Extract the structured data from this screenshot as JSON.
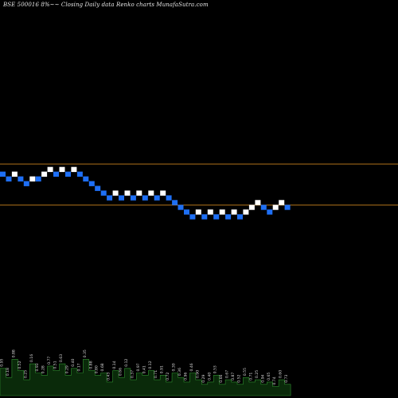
{
  "title": "BSE 500016  8%~~ Closing Daily data  Renko  charts MunafaSutra.com",
  "colors": {
    "background": "#000000",
    "up_brick": "#ffffff",
    "down_brick": "#1e6ff5",
    "guide_line": "#c8821e",
    "volume_fill": "#0a2a0a",
    "volume_stroke": "#2f8f2f",
    "volume_label": "#d8d8d8"
  },
  "chart_data": {
    "type": "renko",
    "title": "BSE 500016  8%~~ Closing Daily data  Renko  charts MunafaSutra.com",
    "bricks": [
      {
        "d": "down",
        "level": 6
      },
      {
        "d": "down",
        "level": 5
      },
      {
        "d": "up",
        "level": 6
      },
      {
        "d": "down",
        "level": 5
      },
      {
        "d": "down",
        "level": 4
      },
      {
        "d": "up",
        "level": 5
      },
      {
        "d": "down",
        "level": 5
      },
      {
        "d": "up",
        "level": 6
      },
      {
        "d": "up",
        "level": 7
      },
      {
        "d": "down",
        "level": 6
      },
      {
        "d": "up",
        "level": 7
      },
      {
        "d": "down",
        "level": 6
      },
      {
        "d": "up",
        "level": 7
      },
      {
        "d": "down",
        "level": 6
      },
      {
        "d": "down",
        "level": 5
      },
      {
        "d": "down",
        "level": 4
      },
      {
        "d": "down",
        "level": 3
      },
      {
        "d": "down",
        "level": 2
      },
      {
        "d": "down",
        "level": 1
      },
      {
        "d": "up",
        "level": 2
      },
      {
        "d": "down",
        "level": 1
      },
      {
        "d": "up",
        "level": 2
      },
      {
        "d": "down",
        "level": 1
      },
      {
        "d": "up",
        "level": 2
      },
      {
        "d": "down",
        "level": 1
      },
      {
        "d": "up",
        "level": 2
      },
      {
        "d": "down",
        "level": 1
      },
      {
        "d": "up",
        "level": 2
      },
      {
        "d": "down",
        "level": 1
      },
      {
        "d": "down",
        "level": 0
      },
      {
        "d": "down",
        "level": -1
      },
      {
        "d": "down",
        "level": -2
      },
      {
        "d": "down",
        "level": -3
      },
      {
        "d": "up",
        "level": -2
      },
      {
        "d": "down",
        "level": -3
      },
      {
        "d": "up",
        "level": -2
      },
      {
        "d": "down",
        "level": -3
      },
      {
        "d": "up",
        "level": -2
      },
      {
        "d": "down",
        "level": -3
      },
      {
        "d": "up",
        "level": -2
      },
      {
        "d": "down",
        "level": -3
      },
      {
        "d": "up",
        "level": -2
      },
      {
        "d": "up",
        "level": -1
      },
      {
        "d": "up",
        "level": 0
      },
      {
        "d": "down",
        "level": -1
      },
      {
        "d": "down",
        "level": -2
      },
      {
        "d": "up",
        "level": -1
      },
      {
        "d": "up",
        "level": 0
      },
      {
        "d": "down",
        "level": -1
      }
    ],
    "guide_levels": [
      7.6,
      0
    ],
    "level_range": [
      -3,
      7
    ],
    "volume": {
      "values": [
        60,
        40,
        80,
        55,
        35,
        70,
        50,
        45,
        65,
        55,
        70,
        45,
        60,
        50,
        80,
        55,
        45,
        50,
        30,
        55,
        40,
        60,
        35,
        50,
        45,
        55,
        35,
        45,
        30,
        50,
        40,
        30,
        50,
        35,
        25,
        30,
        45,
        25,
        35,
        30,
        25,
        40,
        30,
        35,
        25,
        30,
        20,
        35,
        25
      ],
      "max": 100,
      "labels": [
        "0.95",
        "0.18",
        "0.88",
        "0.52",
        "0.25",
        "0.16",
        "0.93",
        "0.28",
        "0.77",
        "0.51",
        "0.63",
        "0.29",
        "0.40",
        "0.17",
        "0.35",
        "0.88",
        "0.80",
        "0.68",
        "0.43",
        "0.14",
        "0.66",
        "0.12",
        "0.37",
        "0.97",
        "0.41",
        "0.12",
        "0.71",
        "0.91",
        "0.72",
        "0.30",
        "0.36",
        "0.96",
        "0.46",
        "0.90",
        "0.29",
        "0.40",
        "0.53",
        "0.66",
        "0.67",
        "0.87",
        "0.52",
        "0.55",
        "0.71",
        "0.25",
        "0.94",
        "0.65",
        "0.74",
        "0.60",
        "0.73"
      ]
    }
  }
}
